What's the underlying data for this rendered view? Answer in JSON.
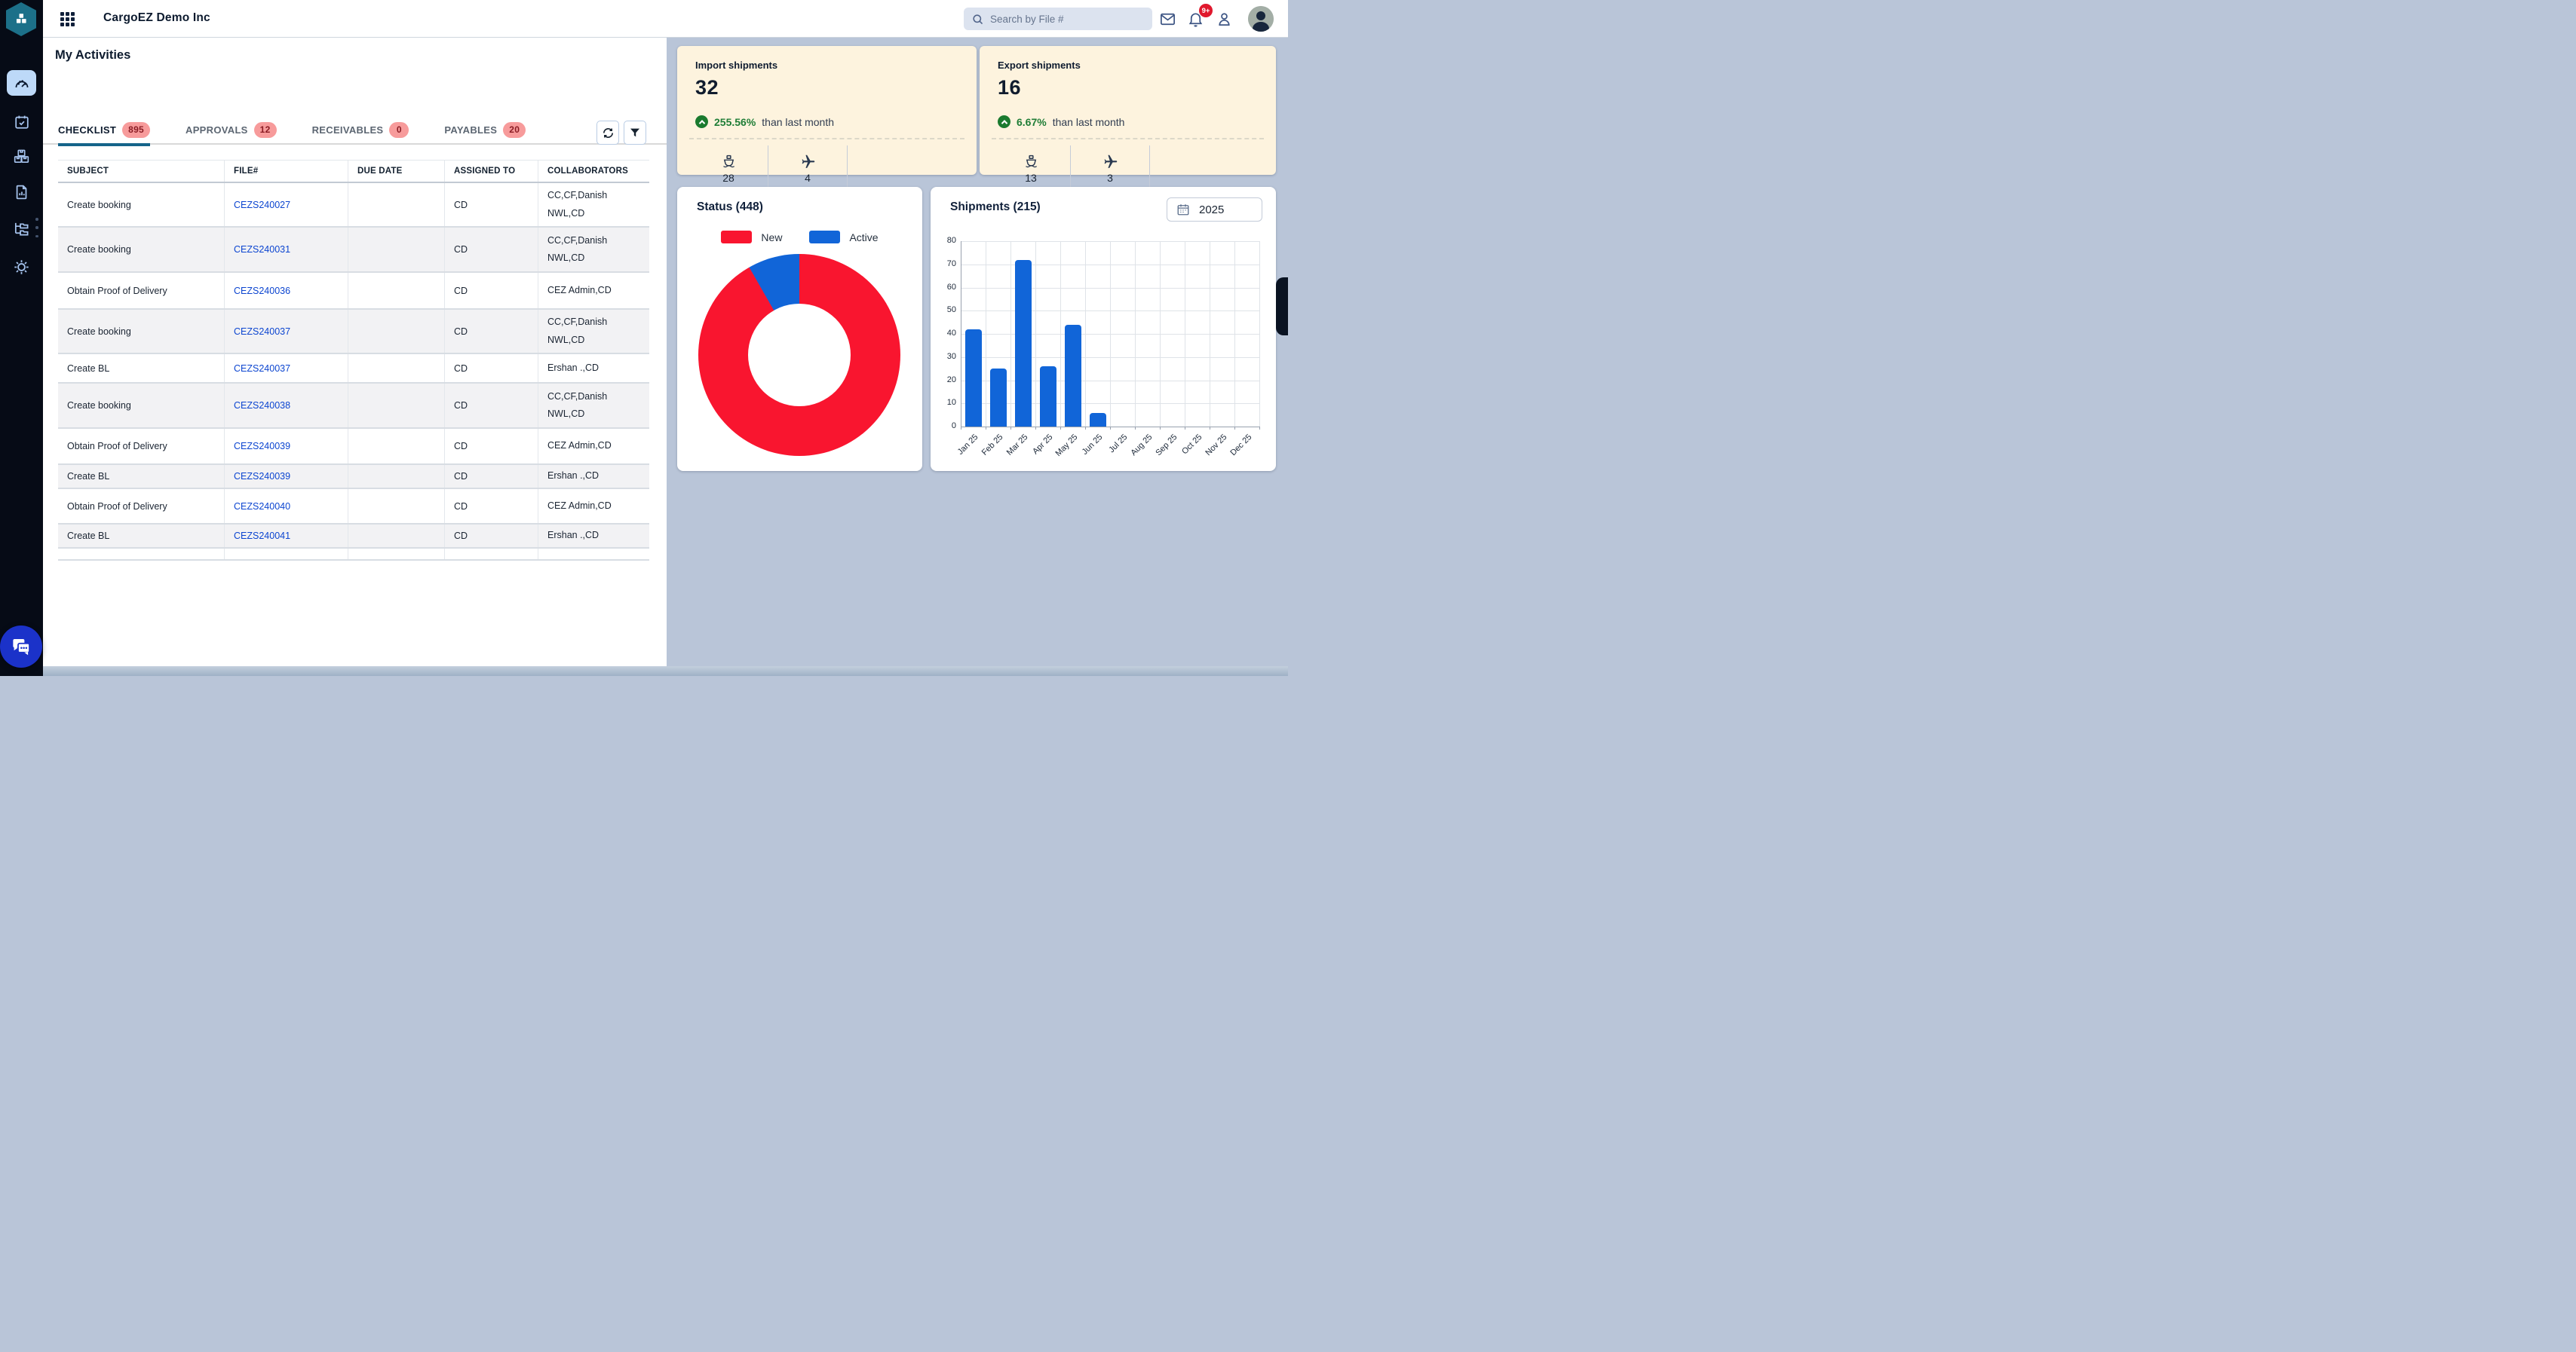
{
  "app": {
    "name": "CargoEZ Demo Inc"
  },
  "topbar": {
    "search_placeholder": "Search by File #",
    "notification_badge": "9+"
  },
  "sidebar": {
    "icons": [
      {
        "name": "dashboard-icon",
        "active": true
      },
      {
        "name": "calendar-check-icon",
        "active": false
      },
      {
        "name": "boxes-icon",
        "active": false
      },
      {
        "name": "report-file-icon",
        "active": false
      },
      {
        "name": "folder-tree-icon",
        "active": false
      },
      {
        "name": "settings-gear-icon",
        "active": false,
        "overflow_dots": true
      }
    ]
  },
  "activities": {
    "title": "My Activities",
    "tabs": [
      {
        "label": "CHECKLIST",
        "count": "895",
        "active": true
      },
      {
        "label": "APPROVALS",
        "count": "12",
        "active": false
      },
      {
        "label": "RECEIVABLES",
        "count": "0",
        "active": false
      },
      {
        "label": "PAYABLES",
        "count": "20",
        "active": false
      }
    ],
    "table": {
      "columns": [
        "SUBJECT",
        "FILE#",
        "DUE DATE",
        "ASSIGNED TO",
        "COLLABORATORS"
      ],
      "rows": [
        {
          "subject": "Create booking",
          "file": "CEZS240027",
          "due": "",
          "assigned": "CD",
          "collaborators": "CC,CF,Danish NWL,CD"
        },
        {
          "subject": "Create booking",
          "file": "CEZS240031",
          "due": "",
          "assigned": "CD",
          "collaborators": "CC,CF,Danish NWL,CD"
        },
        {
          "subject": "Obtain Proof of Delivery",
          "file": "CEZS240036",
          "due": "",
          "assigned": "CD",
          "collaborators": "CEZ Admin,CD"
        },
        {
          "subject": "Create booking",
          "file": "CEZS240037",
          "due": "",
          "assigned": "CD",
          "collaborators": "CC,CF,Danish NWL,CD"
        },
        {
          "subject": "Create BL",
          "file": "CEZS240037",
          "due": "",
          "assigned": "CD",
          "collaborators": "Ershan .,CD"
        },
        {
          "subject": "Create booking",
          "file": "CEZS240038",
          "due": "",
          "assigned": "CD",
          "collaborators": "CC,CF,Danish NWL,CD"
        },
        {
          "subject": "Obtain Proof of Delivery",
          "file": "CEZS240039",
          "due": "",
          "assigned": "CD",
          "collaborators": "CEZ Admin,CD"
        },
        {
          "subject": "Create BL",
          "file": "CEZS240039",
          "due": "",
          "assigned": "CD",
          "collaborators": "Ershan .,CD"
        },
        {
          "subject": "Obtain Proof of Delivery",
          "file": "CEZS240040",
          "due": "",
          "assigned": "CD",
          "collaborators": "CEZ Admin,CD"
        },
        {
          "subject": "Create BL",
          "file": "CEZS240041",
          "due": "",
          "assigned": "CD",
          "collaborators": "Ershan .,CD"
        }
      ]
    }
  },
  "stat_cards": {
    "import": {
      "title": "Import shipments",
      "value": "32",
      "change": "255.56%",
      "change_note": "than last month",
      "sea_count": "28",
      "air_count": "4"
    },
    "export": {
      "title": "Export shipments",
      "value": "16",
      "change": "6.67%",
      "change_note": "than last month",
      "sea_count": "13",
      "air_count": "3"
    }
  },
  "status_card": {
    "title": "Status (448)"
  },
  "shipments_card": {
    "title": "Shipments (215)",
    "year": "2025"
  },
  "chart_data": [
    {
      "type": "pie",
      "donut": true,
      "title": "Status (448)",
      "total": 448,
      "labels": [
        "New",
        "Active"
      ],
      "values": [
        411,
        37
      ],
      "colors": [
        "#f9152f",
        "#1165d8"
      ],
      "legend_position": "top"
    },
    {
      "type": "bar",
      "title": "Shipments (215)",
      "year_filter": "2025",
      "categories": [
        "Jan 25",
        "Feb 25",
        "Mar 25",
        "Apr 25",
        "May 25",
        "Jun 25",
        "Jul 25",
        "Aug 25",
        "Sep 25",
        "Oct 25",
        "Nov 25",
        "Dec 25"
      ],
      "values": [
        42,
        25,
        72,
        26,
        44,
        6,
        0,
        0,
        0,
        0,
        0,
        0
      ],
      "ylabel": "",
      "xlabel": "",
      "ylim": [
        0,
        80
      ],
      "ytick_step": 10,
      "bar_color": "#1165d8",
      "grid": true
    }
  ],
  "colors": {
    "accent_red": "#f9152f",
    "accent_blue": "#1165d8",
    "green": "#1f7d36",
    "badge_bg": "#f79b9b",
    "cream_card": "#fdf3de",
    "page_bg": "#b9c5d8",
    "link": "#0c45d0"
  }
}
